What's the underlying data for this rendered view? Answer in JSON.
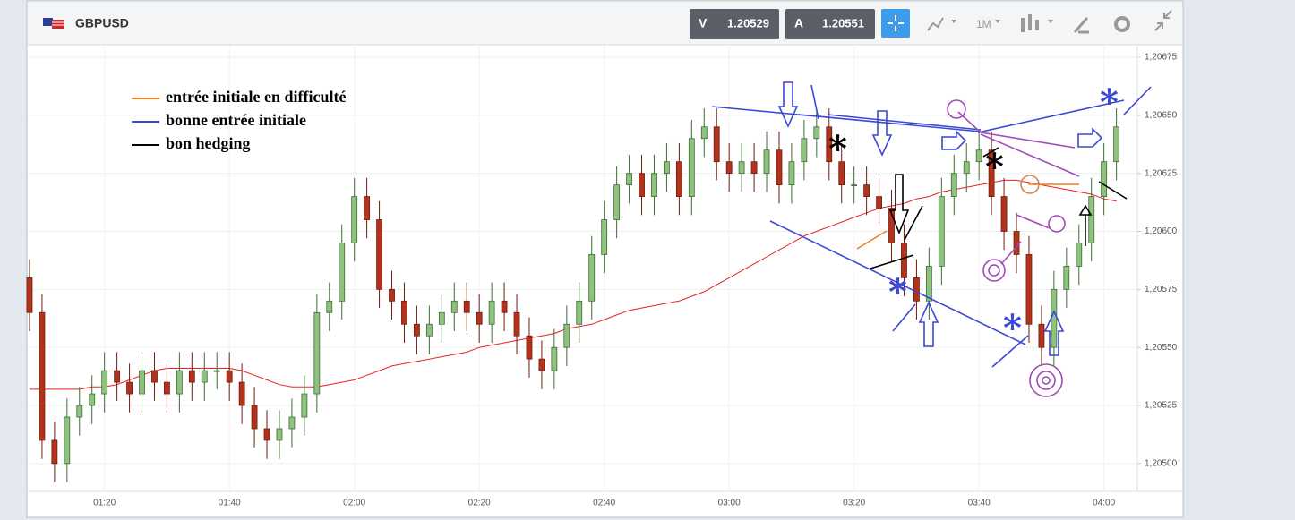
{
  "header": {
    "symbol": "GBPUSD",
    "bid_label": "V",
    "bid": "1.20529",
    "ask_label": "A",
    "ask": "1.20551",
    "timeframe": "1M"
  },
  "chart_data": {
    "type": "candlestick",
    "categories": [
      null,
      null,
      null,
      null,
      null,
      null,
      "01:20",
      null,
      null,
      null,
      null,
      null,
      null,
      null,
      null,
      null,
      "01:40",
      null,
      null,
      null,
      null,
      null,
      null,
      null,
      null,
      null,
      "02:00",
      null,
      null,
      null,
      null,
      null,
      null,
      null,
      null,
      null,
      "02:20",
      null,
      null,
      null,
      null,
      null,
      null,
      null,
      null,
      null,
      "02:40",
      null,
      null,
      null,
      null,
      null,
      null,
      null,
      null,
      null,
      "03:00",
      null,
      null,
      null,
      null,
      null,
      null,
      null,
      null,
      null,
      "03:20",
      null,
      null,
      null,
      null,
      null,
      null,
      null,
      null,
      null,
      "03:40",
      null,
      null,
      null,
      null,
      null,
      null,
      null,
      null,
      null,
      "04:00",
      null
    ],
    "open": [
      1.2058,
      1.20565,
      1.2051,
      1.205,
      1.2052,
      1.20525,
      1.2053,
      1.2054,
      1.20535,
      1.2053,
      1.2054,
      1.20535,
      1.2053,
      1.2054,
      1.20535,
      1.2054,
      1.2054,
      1.20535,
      1.20525,
      1.20515,
      1.2051,
      1.20515,
      1.2052,
      1.2053,
      1.20565,
      1.2057,
      1.20595,
      1.20615,
      1.20605,
      1.20575,
      1.2057,
      1.2056,
      1.20555,
      1.2056,
      1.20565,
      1.2057,
      1.20565,
      1.2056,
      1.2057,
      1.20565,
      1.20555,
      1.20545,
      1.2054,
      1.2055,
      1.2056,
      1.2057,
      1.2059,
      1.20605,
      1.2062,
      1.20625,
      1.20615,
      1.20625,
      1.2063,
      1.20615,
      1.2064,
      1.20645,
      1.2063,
      1.20625,
      1.2063,
      1.20625,
      1.20635,
      1.2062,
      1.2063,
      1.2064,
      1.20645,
      1.2063,
      1.2062,
      1.2062,
      1.20615,
      1.2061,
      1.20595,
      1.2058,
      1.2057,
      1.20585,
      1.20615,
      1.20625,
      1.2063,
      1.20635,
      1.20615,
      1.206,
      1.2059,
      1.2056,
      1.2055,
      1.20575,
      1.20585,
      1.20595,
      1.20615,
      1.2063
    ],
    "high": [
      1.20588,
      1.20573,
      1.20518,
      1.20528,
      1.20533,
      1.20538,
      1.20548,
      1.20548,
      1.20543,
      1.20548,
      1.20548,
      1.20543,
      1.20548,
      1.20548,
      1.20548,
      1.20548,
      1.20548,
      1.20543,
      1.20533,
      1.20523,
      1.20523,
      1.20528,
      1.20538,
      1.20573,
      1.20578,
      1.20603,
      1.20623,
      1.20623,
      1.20613,
      1.20583,
      1.20578,
      1.20568,
      1.20568,
      1.20573,
      1.20578,
      1.20578,
      1.20573,
      1.20578,
      1.20578,
      1.20573,
      1.20563,
      1.20553,
      1.20558,
      1.20568,
      1.20578,
      1.20598,
      1.20613,
      1.20628,
      1.20633,
      1.20633,
      1.20633,
      1.20638,
      1.20638,
      1.20648,
      1.20653,
      1.20653,
      1.20638,
      1.20638,
      1.20638,
      1.20643,
      1.20643,
      1.20638,
      1.20648,
      1.20653,
      1.20653,
      1.20638,
      1.20628,
      1.20628,
      1.20623,
      1.20618,
      1.20603,
      1.20588,
      1.20593,
      1.20623,
      1.20633,
      1.20638,
      1.20643,
      1.20643,
      1.20623,
      1.20608,
      1.20598,
      1.20568,
      1.20583,
      1.20593,
      1.20603,
      1.20623,
      1.20638,
      1.20653
    ],
    "low": [
      1.20557,
      1.20502,
      1.20492,
      1.20492,
      1.20512,
      1.20517,
      1.20522,
      1.20527,
      1.20522,
      1.20522,
      1.20527,
      1.20522,
      1.20522,
      1.20527,
      1.20527,
      1.20532,
      1.20527,
      1.20517,
      1.20507,
      1.20502,
      1.20502,
      1.20507,
      1.20512,
      1.20522,
      1.20557,
      1.20562,
      1.20587,
      1.20597,
      1.20567,
      1.20562,
      1.20552,
      1.20547,
      1.20547,
      1.20552,
      1.20557,
      1.20557,
      1.20552,
      1.20552,
      1.20557,
      1.20547,
      1.20537,
      1.20532,
      1.20532,
      1.20542,
      1.20552,
      1.20562,
      1.20582,
      1.20597,
      1.20612,
      1.20607,
      1.20607,
      1.20617,
      1.20607,
      1.20607,
      1.20632,
      1.20622,
      1.20617,
      1.20617,
      1.20617,
      1.20617,
      1.20612,
      1.20612,
      1.20622,
      1.20632,
      1.20622,
      1.20612,
      1.20612,
      1.20607,
      1.20602,
      1.20587,
      1.20572,
      1.20562,
      1.20562,
      1.20577,
      1.20607,
      1.20617,
      1.20622,
      1.20607,
      1.20592,
      1.20582,
      1.20552,
      1.20542,
      1.20542,
      1.20567,
      1.20577,
      1.20587,
      1.20607,
      1.20622
    ],
    "close": [
      1.20565,
      1.2051,
      1.205,
      1.2052,
      1.20525,
      1.2053,
      1.2054,
      1.20535,
      1.2053,
      1.2054,
      1.20535,
      1.2053,
      1.2054,
      1.20535,
      1.2054,
      1.2054,
      1.20535,
      1.20525,
      1.20515,
      1.2051,
      1.20515,
      1.2052,
      1.2053,
      1.20565,
      1.2057,
      1.20595,
      1.20615,
      1.20605,
      1.20575,
      1.2057,
      1.2056,
      1.20555,
      1.2056,
      1.20565,
      1.2057,
      1.20565,
      1.2056,
      1.2057,
      1.20565,
      1.20555,
      1.20545,
      1.2054,
      1.2055,
      1.2056,
      1.2057,
      1.2059,
      1.20605,
      1.2062,
      1.20625,
      1.20615,
      1.20625,
      1.2063,
      1.20615,
      1.2064,
      1.20645,
      1.2063,
      1.20625,
      1.2063,
      1.20625,
      1.20635,
      1.2062,
      1.2063,
      1.2064,
      1.20645,
      1.2063,
      1.2062,
      1.2062,
      1.20615,
      1.2061,
      1.20595,
      1.2058,
      1.2057,
      1.20585,
      1.20615,
      1.20625,
      1.2063,
      1.20635,
      1.20615,
      1.206,
      1.2059,
      1.2056,
      1.2055,
      1.20575,
      1.20585,
      1.20595,
      1.20615,
      1.2063,
      1.20645
    ],
    "moving_average": {
      "color": "#e8231f",
      "values": [
        1.20532,
        1.20532,
        1.20532,
        1.20532,
        1.20532,
        1.20533,
        1.20533,
        1.20534,
        1.20536,
        1.20538,
        1.2054,
        1.20541,
        1.20541,
        1.20541,
        1.20541,
        1.20541,
        1.20541,
        1.2054,
        1.20538,
        1.20536,
        1.20534,
        1.20533,
        1.20533,
        1.20533,
        1.20534,
        1.20535,
        1.20536,
        1.20538,
        1.2054,
        1.20542,
        1.20543,
        1.20544,
        1.20545,
        1.20546,
        1.20547,
        1.20548,
        1.2055,
        1.20551,
        1.20552,
        1.20553,
        1.20554,
        1.20555,
        1.20556,
        1.20558,
        1.20559,
        1.2056,
        1.20562,
        1.20564,
        1.20566,
        1.20567,
        1.20568,
        1.20569,
        1.2057,
        1.20572,
        1.20574,
        1.20577,
        1.2058,
        1.20583,
        1.20586,
        1.20589,
        1.20592,
        1.20595,
        1.20598,
        1.206,
        1.20602,
        1.20604,
        1.20606,
        1.20608,
        1.2061,
        1.20611,
        1.20612,
        1.20614,
        1.20615,
        1.20617,
        1.20618,
        1.20619,
        1.2062,
        1.20621,
        1.20622,
        1.20622,
        1.20621,
        1.2062,
        1.20619,
        1.20618,
        1.20617,
        1.20616,
        1.20614,
        1.20613
      ]
    },
    "up_color": "#8fc27f",
    "down_color": "#b3321c",
    "ylim": [
      1.20488,
      1.2068
    ],
    "yticks": [
      {
        "value": 1.205,
        "label": "1,20500"
      },
      {
        "value": 1.20525,
        "label": "1,20525"
      },
      {
        "value": 1.2055,
        "label": "1,20550"
      },
      {
        "value": 1.20575,
        "label": "1,20575"
      },
      {
        "value": 1.206,
        "label": "1,20600"
      },
      {
        "value": 1.20625,
        "label": "1,20625"
      },
      {
        "value": 1.2065,
        "label": "1,20650"
      },
      {
        "value": 1.20675,
        "label": "1,20675"
      }
    ],
    "grid": true,
    "annotations": [
      {
        "text": "entrée initiale en difficulté",
        "color": "#f07d1e"
      },
      {
        "text": "bonne entrée initiale",
        "color": "#3b47d6"
      },
      {
        "text": "bon hedging",
        "color": "#000000"
      }
    ]
  }
}
